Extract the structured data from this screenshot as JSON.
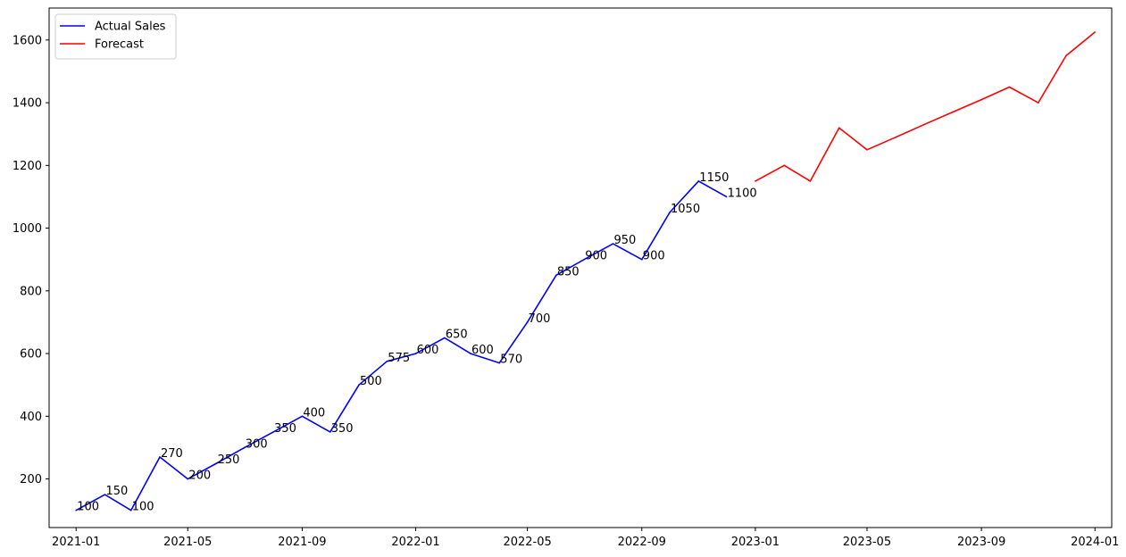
{
  "chart_data": {
    "type": "line",
    "title": "",
    "xlabel": "",
    "ylabel": "",
    "x_axis": {
      "kind": "date",
      "range": [
        "2020-12-03",
        "2024-01-19"
      ],
      "ticks": [
        "2021-01",
        "2021-05",
        "2021-09",
        "2022-01",
        "2022-05",
        "2022-09",
        "2023-01",
        "2023-05",
        "2023-09",
        "2024-01"
      ]
    },
    "y_axis": {
      "range": [
        45,
        1702
      ],
      "ticks": [
        200,
        400,
        600,
        800,
        1000,
        1200,
        1400,
        1600
      ]
    },
    "grid": false,
    "legend_position": "top-left",
    "series": [
      {
        "name": "Actual Sales",
        "color": "#0000ff",
        "show_point_labels": true,
        "points": [
          {
            "x": "2021-01-01",
            "y": 100
          },
          {
            "x": "2021-02-01",
            "y": 150
          },
          {
            "x": "2021-03-01",
            "y": 100
          },
          {
            "x": "2021-04-01",
            "y": 270
          },
          {
            "x": "2021-05-01",
            "y": 200
          },
          {
            "x": "2021-06-01",
            "y": 250
          },
          {
            "x": "2021-07-01",
            "y": 300
          },
          {
            "x": "2021-08-01",
            "y": 350
          },
          {
            "x": "2021-09-01",
            "y": 400
          },
          {
            "x": "2021-10-01",
            "y": 350
          },
          {
            "x": "2021-11-01",
            "y": 500
          },
          {
            "x": "2021-12-01",
            "y": 575
          },
          {
            "x": "2022-01-01",
            "y": 600
          },
          {
            "x": "2022-02-01",
            "y": 650
          },
          {
            "x": "2022-03-01",
            "y": 600
          },
          {
            "x": "2022-04-01",
            "y": 570
          },
          {
            "x": "2022-05-01",
            "y": 700
          },
          {
            "x": "2022-06-01",
            "y": 850
          },
          {
            "x": "2022-07-01",
            "y": 900
          },
          {
            "x": "2022-08-01",
            "y": 950
          },
          {
            "x": "2022-09-01",
            "y": 900
          },
          {
            "x": "2022-10-01",
            "y": 1050
          },
          {
            "x": "2022-11-01",
            "y": 1150
          },
          {
            "x": "2022-12-01",
            "y": 1100
          }
        ]
      },
      {
        "name": "Forecast",
        "color": "#ff0000",
        "show_point_labels": false,
        "points": [
          {
            "x": "2023-01-01",
            "y": 1150
          },
          {
            "x": "2023-02-01",
            "y": 1200
          },
          {
            "x": "2023-03-01",
            "y": 1150
          },
          {
            "x": "2023-04-01",
            "y": 1320
          },
          {
            "x": "2023-05-01",
            "y": 1250
          },
          {
            "x": "2023-06-01",
            "y": 1290
          },
          {
            "x": "2023-07-01",
            "y": 1330
          },
          {
            "x": "2023-08-01",
            "y": 1370
          },
          {
            "x": "2023-09-01",
            "y": 1410
          },
          {
            "x": "2023-10-01",
            "y": 1450
          },
          {
            "x": "2023-11-01",
            "y": 1400
          },
          {
            "x": "2023-12-01",
            "y": 1550
          },
          {
            "x": "2024-01-01",
            "y": 1625
          }
        ]
      }
    ]
  }
}
